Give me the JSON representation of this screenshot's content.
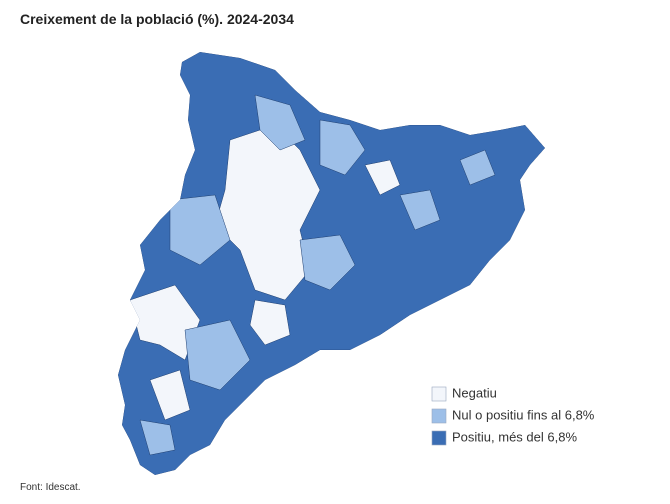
{
  "header": {
    "title": "Creixement de la població (%). 2024-2034"
  },
  "legend": [
    {
      "label": "Negatiu",
      "color": "#f3f6fb"
    },
    {
      "label": "Nul o positiu fins al 6,8%",
      "color": "#9dbfe8"
    },
    {
      "label": "Positiu, més del 6,8%",
      "color": "#3a6db4"
    }
  ],
  "footer": {
    "source": "Font: Idescat."
  }
}
